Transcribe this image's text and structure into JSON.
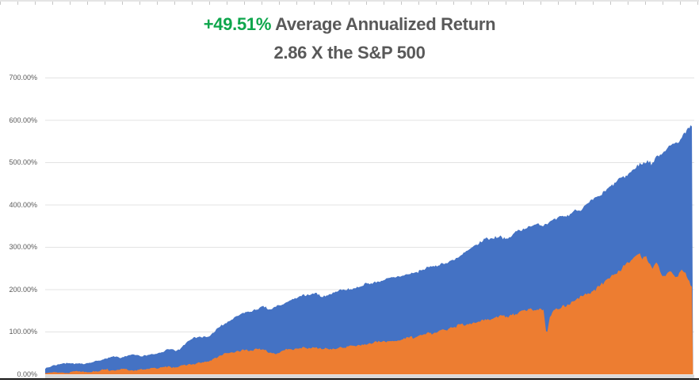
{
  "page": {
    "background": "#ffffff"
  },
  "title": {
    "line1_highlight": "+49.51%",
    "line1_rest": " Average Annualized Return",
    "line2": "2.86 X the S&P 500",
    "highlight_color": "#0EA64C",
    "text_color": "#595959"
  },
  "chart_data": {
    "type": "area",
    "title": "+49.51% Average Annualized Return",
    "subtitle": "2.86 X the S&P 500",
    "xlabel": "",
    "ylabel": "",
    "ylim": [
      0,
      700
    ],
    "grid": true,
    "legend": "none",
    "x_tick_labels_visible": false,
    "x_unit": "percent_of_time_range",
    "y_unit": "percent_return",
    "y_ticks": [
      {
        "label": "0.00%",
        "value": 0
      },
      {
        "label": "100.00%",
        "value": 100
      },
      {
        "label": "200.00%",
        "value": 200
      },
      {
        "label": "300.00%",
        "value": 300
      },
      {
        "label": "400.00%",
        "value": 400
      },
      {
        "label": "500.00%",
        "value": 500
      },
      {
        "label": "600.00%",
        "value": 600
      },
      {
        "label": "700.00%",
        "value": 700
      }
    ],
    "series": [
      {
        "name": "series-blue",
        "color": "#4472C4",
        "points": [
          [
            0,
            15
          ],
          [
            1.2,
            21
          ],
          [
            2.4,
            24
          ],
          [
            3.7,
            28
          ],
          [
            4.9,
            25
          ],
          [
            6.1,
            24
          ],
          [
            7.3,
            30
          ],
          [
            8.6,
            33
          ],
          [
            9.8,
            38
          ],
          [
            11,
            43
          ],
          [
            11.7,
            37
          ],
          [
            12.6,
            44
          ],
          [
            13.4,
            46
          ],
          [
            14.7,
            44
          ],
          [
            15.9,
            45
          ],
          [
            17.1,
            48
          ],
          [
            18.3,
            55
          ],
          [
            18.9,
            60
          ],
          [
            19.6,
            58
          ],
          [
            20.2,
            55
          ],
          [
            20.8,
            58
          ],
          [
            22,
            80
          ],
          [
            22.6,
            86
          ],
          [
            23.8,
            90
          ],
          [
            25.1,
            86
          ],
          [
            25.7,
            95
          ],
          [
            26.3,
            103
          ],
          [
            27.5,
            118
          ],
          [
            28.7,
            128
          ],
          [
            30,
            140
          ],
          [
            31.2,
            146
          ],
          [
            32.4,
            151
          ],
          [
            33.6,
            158
          ],
          [
            34.8,
            153
          ],
          [
            36.1,
            163
          ],
          [
            37.3,
            170
          ],
          [
            38.5,
            176
          ],
          [
            39.7,
            184
          ],
          [
            41,
            188
          ],
          [
            42.2,
            190
          ],
          [
            43.2,
            183
          ],
          [
            44.6,
            194
          ],
          [
            45.8,
            198
          ],
          [
            47.1,
            200
          ],
          [
            48.3,
            205
          ],
          [
            49.5,
            212
          ],
          [
            50.7,
            216
          ],
          [
            52,
            220
          ],
          [
            53.2,
            225
          ],
          [
            54.4,
            230
          ],
          [
            55.6,
            236
          ],
          [
            56.8,
            241
          ],
          [
            58.1,
            246
          ],
          [
            59.3,
            252
          ],
          [
            60.5,
            258
          ],
          [
            61.7,
            264
          ],
          [
            63,
            272
          ],
          [
            64.2,
            282
          ],
          [
            65.4,
            293
          ],
          [
            66.6,
            305
          ],
          [
            67.8,
            317
          ],
          [
            69.1,
            324
          ],
          [
            70.3,
            328
          ],
          [
            71.5,
            320
          ],
          [
            72.7,
            336
          ],
          [
            74,
            348
          ],
          [
            75.2,
            352
          ],
          [
            76.4,
            355
          ],
          [
            77.6,
            358
          ],
          [
            78.9,
            366
          ],
          [
            80.1,
            372
          ],
          [
            81.3,
            382
          ],
          [
            82.5,
            392
          ],
          [
            83.7,
            404
          ],
          [
            85,
            416
          ],
          [
            86.2,
            430
          ],
          [
            87.4,
            444
          ],
          [
            88.6,
            458
          ],
          [
            89.9,
            472
          ],
          [
            91.1,
            486
          ],
          [
            92.3,
            500
          ],
          [
            93,
            506
          ],
          [
            93.6,
            497
          ],
          [
            94.5,
            515
          ],
          [
            95.5,
            530
          ],
          [
            96.5,
            543
          ],
          [
            97.2,
            550
          ],
          [
            97.7,
            545
          ],
          [
            98.4,
            562
          ],
          [
            99.1,
            572
          ],
          [
            99.6,
            580
          ],
          [
            100,
            585
          ]
        ]
      },
      {
        "name": "series-orange",
        "color": "#ED7D31",
        "points": [
          [
            0,
            3
          ],
          [
            1,
            6
          ],
          [
            2.2,
            5
          ],
          [
            3.4,
            4
          ],
          [
            4.6,
            8
          ],
          [
            5.9,
            7
          ],
          [
            7.1,
            6
          ],
          [
            8.3,
            9
          ],
          [
            9.5,
            11
          ],
          [
            10.8,
            9
          ],
          [
            12,
            12
          ],
          [
            13.2,
            10
          ],
          [
            14.4,
            11
          ],
          [
            15.6,
            13
          ],
          [
            16.9,
            15
          ],
          [
            18.1,
            16
          ],
          [
            19.3,
            17
          ],
          [
            20.5,
            19
          ],
          [
            21.8,
            22
          ],
          [
            23,
            25
          ],
          [
            24.2,
            27
          ],
          [
            25.4,
            30
          ],
          [
            26.3,
            38
          ],
          [
            27.3,
            46
          ],
          [
            28.5,
            51
          ],
          [
            29.7,
            55
          ],
          [
            30.9,
            56
          ],
          [
            32.2,
            57
          ],
          [
            33.4,
            58
          ],
          [
            34.6,
            54
          ],
          [
            35.6,
            50
          ],
          [
            36.6,
            56
          ],
          [
            37.7,
            59
          ],
          [
            38.9,
            60
          ],
          [
            40.1,
            61
          ],
          [
            41.3,
            62
          ],
          [
            42.5,
            62
          ],
          [
            43.8,
            60
          ],
          [
            45,
            62
          ],
          [
            46.2,
            65
          ],
          [
            47.4,
            68
          ],
          [
            48.7,
            71
          ],
          [
            49.9,
            73
          ],
          [
            51.1,
            75
          ],
          [
            52.3,
            77
          ],
          [
            53.5,
            79
          ],
          [
            54.8,
            82
          ],
          [
            56,
            86
          ],
          [
            57.2,
            90
          ],
          [
            58.4,
            94
          ],
          [
            59.7,
            98
          ],
          [
            60.9,
            103
          ],
          [
            62.1,
            108
          ],
          [
            63.3,
            112
          ],
          [
            64.5,
            117
          ],
          [
            65.8,
            121
          ],
          [
            67,
            126
          ],
          [
            68.2,
            131
          ],
          [
            69.4,
            136
          ],
          [
            70.4,
            140
          ],
          [
            71.3,
            133
          ],
          [
            72.2,
            141
          ],
          [
            73.2,
            146
          ],
          [
            74.1,
            150
          ],
          [
            75.2,
            153
          ],
          [
            76.2,
            155
          ],
          [
            76.9,
            150
          ],
          [
            77.4,
            96
          ],
          [
            77.9,
            138
          ],
          [
            78.6,
            152
          ],
          [
            79.3,
            158
          ],
          [
            80.1,
            163
          ],
          [
            81.1,
            169
          ],
          [
            82,
            175
          ],
          [
            83,
            183
          ],
          [
            84,
            192
          ],
          [
            85,
            201
          ],
          [
            85.9,
            212
          ],
          [
            86.9,
            224
          ],
          [
            87.9,
            237
          ],
          [
            88.9,
            250
          ],
          [
            89.6,
            260
          ],
          [
            90.3,
            270
          ],
          [
            91.1,
            278
          ],
          [
            91.7,
            285
          ],
          [
            92.2,
            272
          ],
          [
            92.7,
            280
          ],
          [
            93.3,
            262
          ],
          [
            93.9,
            250
          ],
          [
            94.5,
            262
          ],
          [
            95.1,
            240
          ],
          [
            95.7,
            230
          ],
          [
            96.3,
            248
          ],
          [
            96.9,
            237
          ],
          [
            97.6,
            228
          ],
          [
            98.2,
            252
          ],
          [
            98.7,
            240
          ],
          [
            99.1,
            225
          ],
          [
            99.6,
            210
          ],
          [
            100,
            200
          ]
        ]
      }
    ]
  },
  "colors": {
    "series_blue": "#4472C4",
    "series_orange": "#ED7D31",
    "gridline": "#E3E3E3",
    "axis_band": "#D9D9D9",
    "bottom_edge": "#161616",
    "tick_text": "#595959"
  }
}
